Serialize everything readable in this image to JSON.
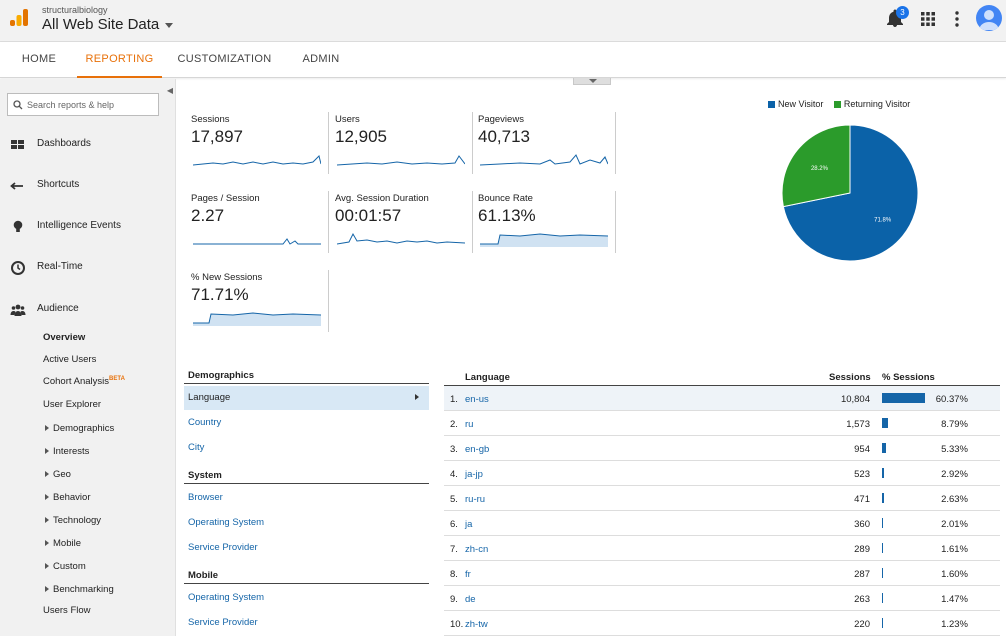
{
  "header": {
    "account": "structuralbiology",
    "property": "All Web Site Data",
    "notification_count": "3",
    "icons": [
      "analytics-logo-icon",
      "bell-icon",
      "apps-grid-icon",
      "more-vert-icon",
      "account-avatar-icon"
    ]
  },
  "nav": {
    "tabs": [
      "HOME",
      "REPORTING",
      "CUSTOMIZATION",
      "ADMIN"
    ],
    "active": "REPORTING"
  },
  "sidebar": {
    "search_placeholder": "Search reports & help",
    "items": [
      {
        "label": "Dashboards",
        "icon": "grid-icon"
      },
      {
        "label": "Shortcuts",
        "icon": "shortcut-arrow-icon"
      },
      {
        "label": "Intelligence Events",
        "icon": "lightbulb-icon"
      },
      {
        "label": "Real-Time",
        "icon": "clock-icon"
      },
      {
        "label": "Audience",
        "icon": "people-icon"
      }
    ],
    "audience_sub": [
      {
        "label": "Overview",
        "bold": true,
        "expand": false
      },
      {
        "label": "Active Users",
        "expand": false
      },
      {
        "label": "Cohort Analysis",
        "beta": "BETA",
        "expand": false
      },
      {
        "label": "User Explorer",
        "expand": false
      },
      {
        "label": "Demographics",
        "expand": true
      },
      {
        "label": "Interests",
        "expand": true
      },
      {
        "label": "Geo",
        "expand": true
      },
      {
        "label": "Behavior",
        "expand": true
      },
      {
        "label": "Technology",
        "expand": true
      },
      {
        "label": "Mobile",
        "expand": true
      },
      {
        "label": "Custom",
        "expand": true
      },
      {
        "label": "Benchmarking",
        "expand": true
      },
      {
        "label": "Users Flow",
        "expand": false
      }
    ]
  },
  "metrics": [
    {
      "label": "Sessions",
      "value": "17,897"
    },
    {
      "label": "Users",
      "value": "12,905"
    },
    {
      "label": "Pageviews",
      "value": "40,713"
    },
    {
      "label": "Pages / Session",
      "value": "2.27"
    },
    {
      "label": "Avg. Session Duration",
      "value": "00:01:57"
    },
    {
      "label": "Bounce Rate",
      "value": "61.13%"
    },
    {
      "label": "% New Sessions",
      "value": "71.71%"
    }
  ],
  "chart_data": {
    "type": "pie",
    "series": [
      {
        "name": "New Visitor",
        "value": 71.8,
        "label": "71.8%",
        "color": "#0b62a8"
      },
      {
        "name": "Returning Visitor",
        "value": 28.2,
        "label": "28.2%",
        "color": "#2b9b2b"
      }
    ],
    "legend": "top"
  },
  "dimensions": {
    "groups": [
      {
        "title": "Demographics",
        "links": [
          "Language",
          "Country",
          "City"
        ]
      },
      {
        "title": "System",
        "links": [
          "Browser",
          "Operating System",
          "Service Provider"
        ]
      },
      {
        "title": "Mobile",
        "links": [
          "Operating System",
          "Service Provider"
        ]
      }
    ],
    "selected": "Language"
  },
  "table": {
    "headers": {
      "dimension": "Language",
      "sessions": "Sessions",
      "pct": "% Sessions"
    },
    "rows": [
      {
        "idx": "1.",
        "lang": "en-us",
        "sessions": "10,804",
        "pct": "60.37%",
        "frac": 0.6037
      },
      {
        "idx": "2.",
        "lang": "ru",
        "sessions": "1,573",
        "pct": "8.79%",
        "frac": 0.0879
      },
      {
        "idx": "3.",
        "lang": "en-gb",
        "sessions": "954",
        "pct": "5.33%",
        "frac": 0.0533
      },
      {
        "idx": "4.",
        "lang": "ja-jp",
        "sessions": "523",
        "pct": "2.92%",
        "frac": 0.0292
      },
      {
        "idx": "5.",
        "lang": "ru-ru",
        "sessions": "471",
        "pct": "2.63%",
        "frac": 0.0263
      },
      {
        "idx": "6.",
        "lang": "ja",
        "sessions": "360",
        "pct": "2.01%",
        "frac": 0.0201
      },
      {
        "idx": "7.",
        "lang": "zh-cn",
        "sessions": "289",
        "pct": "1.61%",
        "frac": 0.0161
      },
      {
        "idx": "8.",
        "lang": "fr",
        "sessions": "287",
        "pct": "1.60%",
        "frac": 0.016
      },
      {
        "idx": "9.",
        "lang": "de",
        "sessions": "263",
        "pct": "1.47%",
        "frac": 0.0147
      },
      {
        "idx": "10.",
        "lang": "zh-tw",
        "sessions": "220",
        "pct": "1.23%",
        "frac": 0.0123
      }
    ]
  },
  "colors": {
    "accent": "#e8710a",
    "link": "#1565a8",
    "series": "#0b62a8",
    "returning": "#2b9b2b"
  }
}
